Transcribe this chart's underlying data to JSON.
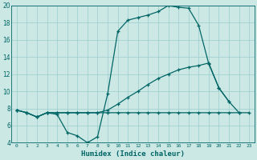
{
  "xlabel": "Humidex (Indice chaleur)",
  "background_color": "#cce8e4",
  "grid_color": "#99cccc",
  "line_color": "#006666",
  "xlim": [
    -0.5,
    23.5
  ],
  "ylim": [
    4,
    20
  ],
  "yticks": [
    4,
    6,
    8,
    10,
    12,
    14,
    16,
    18,
    20
  ],
  "series1_x": [
    0,
    1,
    2,
    3,
    4,
    5,
    6,
    7,
    8,
    9,
    10,
    11,
    12,
    13,
    14,
    15,
    16,
    17,
    18,
    19,
    20,
    21
  ],
  "series1_y": [
    7.8,
    7.5,
    7.0,
    7.5,
    7.3,
    5.2,
    4.8,
    4.0,
    4.7,
    9.7,
    17.0,
    18.3,
    18.6,
    18.9,
    19.3,
    20.0,
    19.8,
    19.7,
    17.7,
    13.2,
    10.4,
    8.8
  ],
  "series2_x": [
    0,
    1,
    2,
    3,
    4,
    5,
    6,
    7,
    8,
    9,
    10,
    11,
    12,
    13,
    14,
    15,
    16,
    17,
    18,
    19,
    20,
    21,
    22,
    23
  ],
  "series2_y": [
    7.8,
    7.5,
    7.0,
    7.5,
    7.5,
    7.5,
    7.5,
    7.5,
    7.5,
    7.8,
    8.5,
    9.3,
    10.0,
    10.8,
    11.5,
    12.0,
    12.5,
    12.8,
    13.0,
    13.3,
    10.4,
    8.8,
    7.5,
    null
  ],
  "series3_x": [
    0,
    1,
    2,
    3,
    4,
    5,
    6,
    7,
    8,
    9,
    10,
    11,
    12,
    13,
    14,
    15,
    16,
    17,
    18,
    19,
    20,
    21,
    22,
    23
  ],
  "series3_y": [
    7.8,
    7.5,
    7.0,
    7.5,
    7.5,
    7.5,
    7.5,
    7.5,
    7.5,
    7.5,
    7.5,
    7.5,
    7.5,
    7.5,
    7.5,
    7.5,
    7.5,
    7.5,
    7.5,
    7.5,
    7.5,
    7.5,
    7.5,
    7.5
  ]
}
